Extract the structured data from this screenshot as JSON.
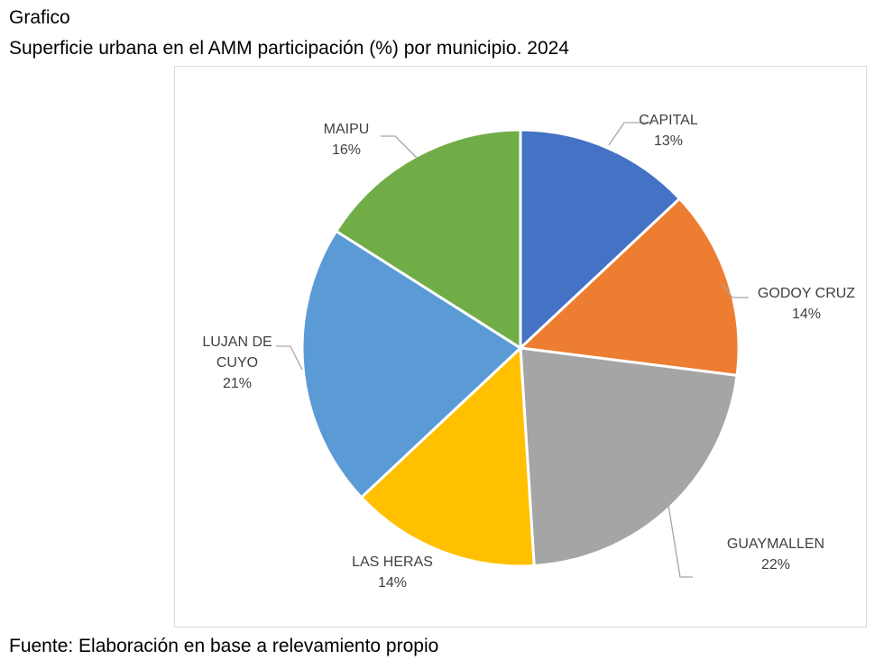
{
  "heading": {
    "label": "Grafico",
    "title": "Superficie urbana en el AMM participación (%) por municipio. 2024"
  },
  "source": "Fuente: Elaboración en base a relevamiento propio",
  "chart_data": {
    "type": "pie",
    "title": "",
    "legend": "none",
    "slices": [
      {
        "name": "CAPITAL",
        "name_lines": [
          "CAPITAL"
        ],
        "value": 13,
        "value_label": "13%",
        "color": "#4472C4"
      },
      {
        "name": "GODOY CRUZ",
        "name_lines": [
          "GODOY CRUZ"
        ],
        "value": 14,
        "value_label": "14%",
        "color": "#ED7D31"
      },
      {
        "name": "GUAYMALLEN",
        "name_lines": [
          "GUAYMALLEN"
        ],
        "value": 22,
        "value_label": "22%",
        "color": "#A5A5A5"
      },
      {
        "name": "LAS HERAS",
        "name_lines": [
          "LAS HERAS"
        ],
        "value": 14,
        "value_label": "14%",
        "color": "#FFC000"
      },
      {
        "name": "LUJAN DE CUYO",
        "name_lines": [
          "LUJAN DE",
          "CUYO"
        ],
        "value": 21,
        "value_label": "21%",
        "color": "#5B9BD5"
      },
      {
        "name": "MAIPU",
        "name_lines": [
          "MAIPU"
        ],
        "value": 16,
        "value_label": "16%",
        "color": "#70AD47"
      }
    ]
  }
}
